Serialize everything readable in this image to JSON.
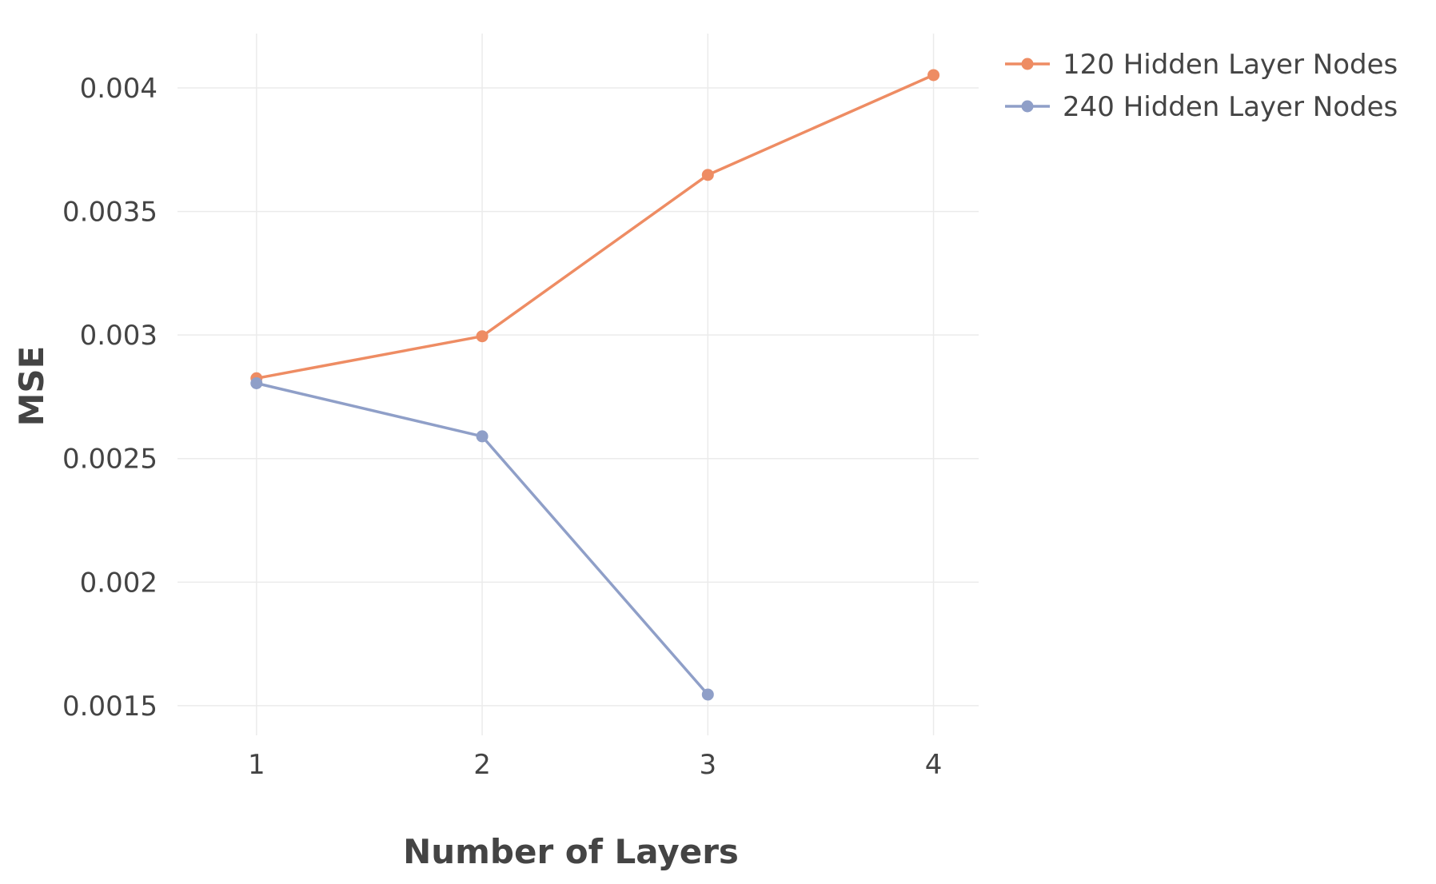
{
  "chart_data": {
    "type": "line",
    "title": "",
    "xlabel": "Number of Layers",
    "ylabel": "MSE",
    "x": [
      1,
      2,
      3,
      4
    ],
    "x_ticks": [
      "1",
      "2",
      "3",
      "4"
    ],
    "xlim": [
      0.65,
      4.2
    ],
    "y_ticks": [
      {
        "value": 0.0015,
        "label": "0.0015"
      },
      {
        "value": 0.002,
        "label": "0.002"
      },
      {
        "value": 0.0025,
        "label": "0.0025"
      },
      {
        "value": 0.003,
        "label": "0.003"
      },
      {
        "value": 0.0035,
        "label": "0.0035"
      },
      {
        "value": 0.004,
        "label": "0.004"
      }
    ],
    "ylim": [
      0.00138,
      0.00422
    ],
    "grid": true,
    "legend_position": "top-right",
    "series": [
      {
        "name": "120 Hidden Layer Nodes",
        "color": "#ee8c63",
        "values": [
          0.002825,
          0.002995,
          0.003648,
          0.004052
        ]
      },
      {
        "name": "240 Hidden Layer Nodes",
        "color": "#8f9fc8",
        "values": [
          0.002805,
          0.00259,
          0.001545,
          null
        ]
      }
    ]
  }
}
